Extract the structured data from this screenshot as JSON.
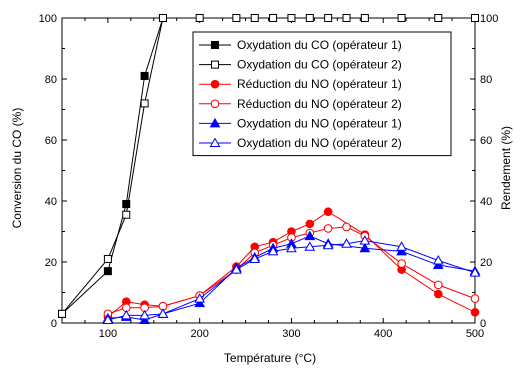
{
  "chart_data": {
    "type": "line",
    "xlabel": "Température (°C)",
    "ylabel_left": "Conversion du CO (%)",
    "ylabel_right": "Rendement (%)",
    "xlim": [
      50,
      500
    ],
    "ylim": [
      0,
      100
    ],
    "ylim_right": [
      0,
      100
    ],
    "x_ticks": [
      100,
      200,
      300,
      400,
      500
    ],
    "y_ticks": [
      0,
      20,
      40,
      60,
      80,
      100
    ],
    "grid": false,
    "legend_position": "top-right",
    "series": [
      {
        "name": "Oxydation du CO (opérateur 1)",
        "color": "#000000",
        "marker": "square",
        "filled": true,
        "points": [
          [
            50,
            3
          ],
          [
            100,
            17
          ],
          [
            120,
            39
          ],
          [
            140,
            81
          ],
          [
            160,
            100
          ]
        ]
      },
      {
        "name": "Oxydation du CO (opérateur 2)",
        "color": "#000000",
        "marker": "square",
        "filled": false,
        "points": [
          [
            50,
            3
          ],
          [
            100,
            21
          ],
          [
            120,
            35.5
          ],
          [
            140,
            72
          ],
          [
            160,
            100
          ],
          [
            200,
            100
          ],
          [
            240,
            100
          ],
          [
            260,
            100
          ],
          [
            280,
            100
          ],
          [
            300,
            100
          ],
          [
            320,
            100
          ],
          [
            340,
            100
          ],
          [
            360,
            100
          ],
          [
            380,
            100
          ],
          [
            420,
            100
          ],
          [
            460,
            100
          ],
          [
            500,
            100
          ]
        ]
      },
      {
        "name": "Réduction du NO (opérateur 1)",
        "color": "#ff0000",
        "marker": "circle",
        "filled": true,
        "points": [
          [
            100,
            2
          ],
          [
            120,
            7
          ],
          [
            140,
            6
          ],
          [
            160,
            5.5
          ],
          [
            200,
            9
          ],
          [
            240,
            18.5
          ],
          [
            260,
            25
          ],
          [
            280,
            26.5
          ],
          [
            300,
            30
          ],
          [
            320,
            32.5
          ],
          [
            340,
            36.5
          ],
          [
            380,
            29
          ],
          [
            420,
            17.5
          ],
          [
            460,
            9.5
          ],
          [
            500,
            3.5
          ]
        ]
      },
      {
        "name": "Réduction du NO (opérateur 2)",
        "color": "#ff0000",
        "marker": "circle",
        "filled": false,
        "points": [
          [
            100,
            3
          ],
          [
            120,
            5
          ],
          [
            140,
            5
          ],
          [
            160,
            5.5
          ],
          [
            200,
            9
          ],
          [
            240,
            17.5
          ],
          [
            260,
            23
          ],
          [
            280,
            25.5
          ],
          [
            300,
            28
          ],
          [
            320,
            29.5
          ],
          [
            340,
            31
          ],
          [
            360,
            31.5
          ],
          [
            380,
            28.5
          ],
          [
            420,
            19.5
          ],
          [
            460,
            12.5
          ],
          [
            500,
            8
          ]
        ]
      },
      {
        "name": "Oxydation du NO (opérateur 1)",
        "color": "#0000ff",
        "marker": "triangle",
        "filled": true,
        "points": [
          [
            100,
            1.5
          ],
          [
            120,
            2
          ],
          [
            140,
            1
          ],
          [
            160,
            3
          ],
          [
            200,
            6.5
          ],
          [
            240,
            18
          ],
          [
            260,
            21.5
          ],
          [
            280,
            24.5
          ],
          [
            300,
            26
          ],
          [
            320,
            28.5
          ],
          [
            340,
            26
          ],
          [
            380,
            24.5
          ],
          [
            420,
            23.5
          ],
          [
            460,
            19
          ],
          [
            500,
            17
          ]
        ]
      },
      {
        "name": "Oxydation du NO (opérateur 2)",
        "color": "#0000ff",
        "marker": "triangle",
        "filled": false,
        "points": [
          [
            100,
            1
          ],
          [
            120,
            2.5
          ],
          [
            140,
            2.5
          ],
          [
            160,
            3
          ],
          [
            200,
            8
          ],
          [
            240,
            17.5
          ],
          [
            260,
            21
          ],
          [
            280,
            23.5
          ],
          [
            300,
            24.5
          ],
          [
            320,
            25
          ],
          [
            340,
            25.5
          ],
          [
            360,
            26
          ],
          [
            380,
            27
          ],
          [
            420,
            25
          ],
          [
            460,
            20.5
          ],
          [
            500,
            16.5
          ]
        ]
      }
    ]
  }
}
